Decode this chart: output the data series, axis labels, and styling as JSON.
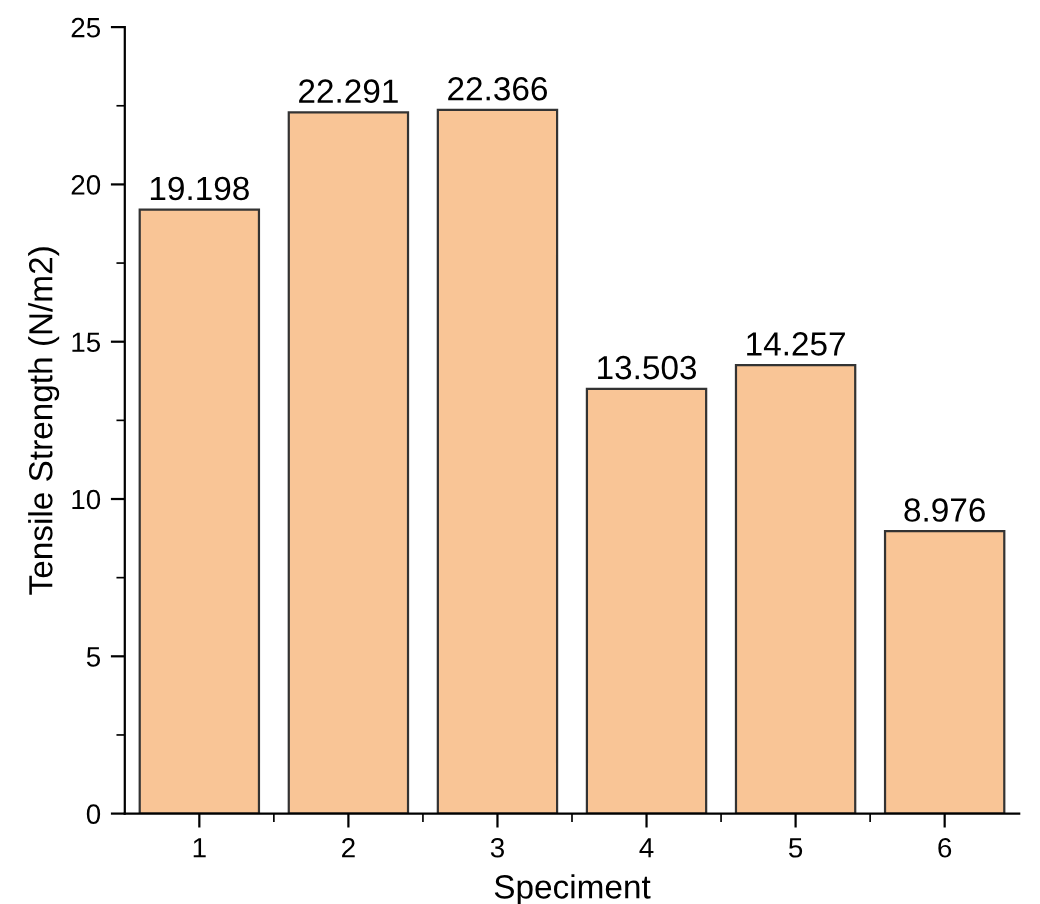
{
  "chart_data": {
    "type": "bar",
    "xlabel": "Speciment",
    "ylabel": "Tensile Strength (N/m2)",
    "categories": [
      "1",
      "2",
      "3",
      "4",
      "5",
      "6"
    ],
    "values": [
      19.198,
      22.291,
      22.366,
      13.503,
      14.257,
      8.976
    ],
    "color": "#f9c596",
    "ylim": [
      0,
      25
    ],
    "yticks": [
      0,
      5,
      10,
      15,
      20,
      25
    ],
    "data_labels": true,
    "grid": false
  }
}
